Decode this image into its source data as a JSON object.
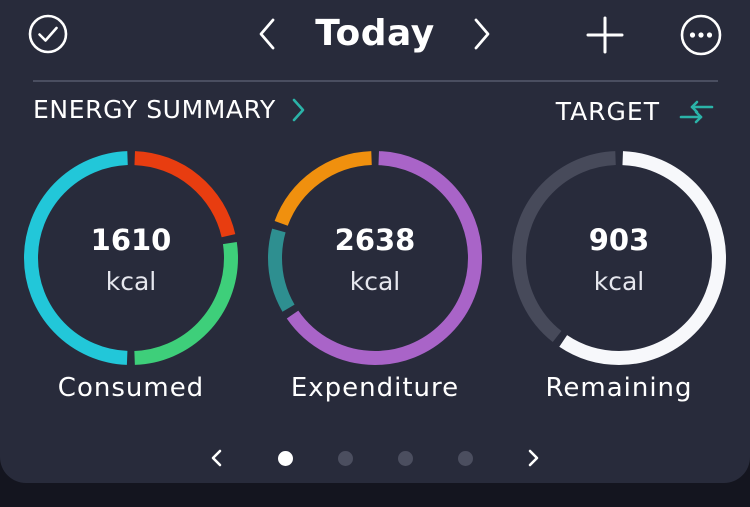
{
  "header": {
    "title": "Today",
    "icons": {
      "check": "check-circle-icon",
      "prev": "chevron-left-icon",
      "next": "chevron-right-icon",
      "add": "plus-icon",
      "more": "more-horizontal-icon"
    }
  },
  "summary": {
    "title": "ENERGY SUMMARY",
    "target_label": "TARGET",
    "target_icon": "swap-arrows-icon"
  },
  "rings": [
    {
      "value": "1610",
      "unit": "kcal",
      "label": "Consumed",
      "segments": [
        {
          "color": "#e83d10",
          "fraction": 0.22
        },
        {
          "color": "#3ecf7a",
          "fraction": 0.28
        },
        {
          "color": "#22c7d9",
          "fraction": 0.5
        }
      ]
    },
    {
      "value": "2638",
      "unit": "kcal",
      "label": "Expenditure",
      "segments": [
        {
          "color": "#a964c8",
          "fraction": 0.66
        },
        {
          "color": "#2e8f90",
          "fraction": 0.14
        },
        {
          "color": "#f0900e",
          "fraction": 0.2
        }
      ]
    },
    {
      "value": "903",
      "unit": "kcal",
      "label": "Remaining",
      "segments": [
        {
          "color": "#f7f8fb",
          "fraction": 0.6
        },
        {
          "color": "#474a5a",
          "fraction": 0.4
        }
      ]
    }
  ],
  "pager": {
    "page_count": 4,
    "current_page": 1,
    "prev_icon": "chevron-left-icon",
    "next_icon": "chevron-right-icon"
  },
  "colors": {
    "card_bg": "#282b3b",
    "page_bg": "#14151f",
    "accent_teal": "#2bb3a8"
  }
}
